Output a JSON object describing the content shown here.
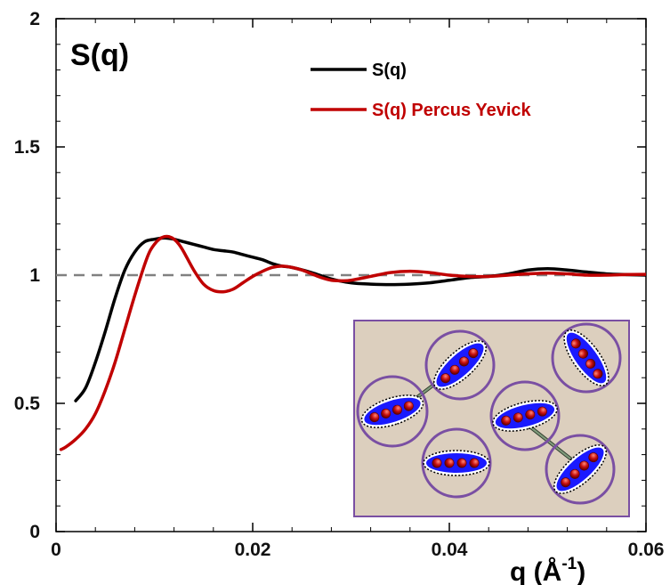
{
  "chart_data": {
    "type": "line",
    "title": "S(q)",
    "xlabel": "q (Å⁻¹)",
    "xlabel_base": "q (Å",
    "xlabel_sup": "-1",
    "xlabel_close": ")",
    "ylabel": "",
    "xlim": [
      0,
      0.06
    ],
    "ylim": [
      0,
      2
    ],
    "x_ticks": [
      0,
      0.02,
      0.04,
      0.06
    ],
    "x_tick_labels": [
      "0",
      "0.02",
      "0.04",
      "0.06"
    ],
    "y_ticks": [
      0,
      0.5,
      1,
      1.5,
      2
    ],
    "y_tick_labels": [
      "0",
      "0.5",
      "1",
      "1.5",
      "2"
    ],
    "grid": false,
    "legend_position": "top-center",
    "reference_line": {
      "y": 1,
      "style": "dashed",
      "color": "#808080"
    },
    "series": [
      {
        "name": "S(q)",
        "color": "#000000",
        "x": [
          0.002,
          0.003,
          0.004,
          0.005,
          0.006,
          0.007,
          0.008,
          0.009,
          0.01,
          0.011,
          0.012,
          0.013,
          0.014,
          0.015,
          0.016,
          0.017,
          0.018,
          0.019,
          0.02,
          0.021,
          0.022,
          0.023,
          0.024,
          0.026,
          0.028,
          0.03,
          0.032,
          0.034,
          0.036,
          0.038,
          0.04,
          0.042,
          0.044,
          0.046,
          0.048,
          0.05,
          0.052,
          0.054,
          0.056,
          0.058,
          0.06
        ],
        "values": [
          0.51,
          0.56,
          0.66,
          0.78,
          0.91,
          1.02,
          1.09,
          1.13,
          1.14,
          1.145,
          1.14,
          1.13,
          1.12,
          1.11,
          1.1,
          1.095,
          1.09,
          1.08,
          1.07,
          1.06,
          1.045,
          1.035,
          1.03,
          1.01,
          0.985,
          0.97,
          0.965,
          0.963,
          0.965,
          0.97,
          0.98,
          0.99,
          0.995,
          1.005,
          1.02,
          1.025,
          1.02,
          1.012,
          1.005,
          1.002,
          1.0
        ]
      },
      {
        "name": "S(q) Percus Yevick",
        "color": "#c00000",
        "x": [
          0.0005,
          0.001,
          0.002,
          0.003,
          0.004,
          0.005,
          0.006,
          0.007,
          0.008,
          0.009,
          0.0095,
          0.01,
          0.0105,
          0.011,
          0.0115,
          0.012,
          0.0125,
          0.013,
          0.014,
          0.015,
          0.016,
          0.017,
          0.018,
          0.019,
          0.02,
          0.021,
          0.022,
          0.023,
          0.024,
          0.025,
          0.026,
          0.027,
          0.028,
          0.029,
          0.03,
          0.032,
          0.034,
          0.036,
          0.038,
          0.04,
          0.042,
          0.044,
          0.046,
          0.048,
          0.05,
          0.052,
          0.054,
          0.056,
          0.058,
          0.06
        ],
        "values": [
          0.32,
          0.33,
          0.36,
          0.4,
          0.46,
          0.55,
          0.66,
          0.79,
          0.92,
          1.04,
          1.09,
          1.12,
          1.14,
          1.15,
          1.15,
          1.14,
          1.12,
          1.09,
          1.02,
          0.965,
          0.94,
          0.935,
          0.945,
          0.97,
          0.995,
          1.015,
          1.03,
          1.035,
          1.03,
          1.02,
          1.005,
          0.99,
          0.98,
          0.978,
          0.98,
          0.995,
          1.01,
          1.015,
          1.01,
          1.0,
          0.995,
          0.995,
          1.0,
          1.005,
          1.008,
          1.005,
          1.0,
          1.0,
          1.002,
          1.003
        ]
      }
    ]
  },
  "inset": {
    "background_color": "#dccfbe",
    "border_color": "#7a4fa3",
    "ring_color": "#7a4fa3",
    "ellipse_color": "#1a1aff",
    "bead_color": "#c81010",
    "connector_color": "#7f9a7a"
  }
}
